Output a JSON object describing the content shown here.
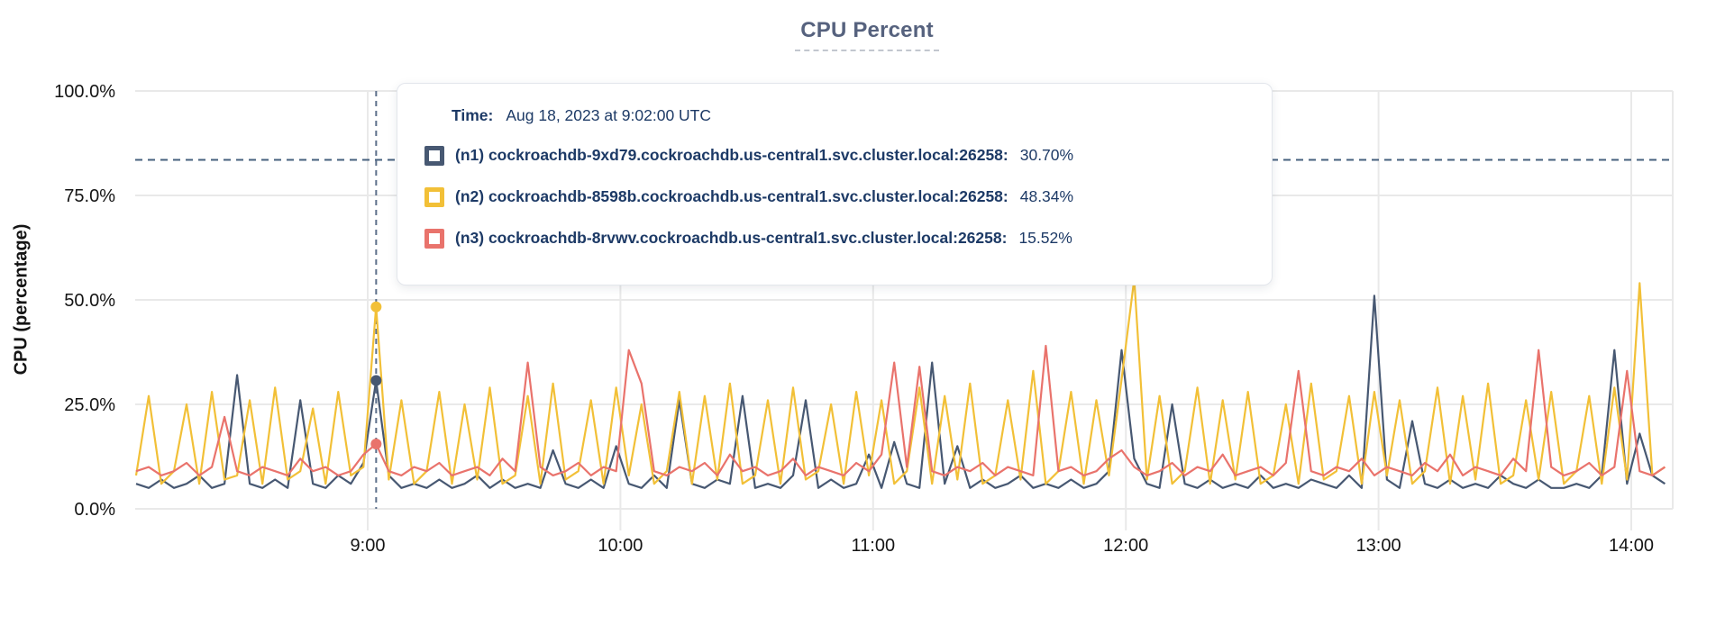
{
  "title": "CPU Percent",
  "tooltip": {
    "time_label": "Time:",
    "time_value": "Aug 18, 2023 at 9:02:00 UTC",
    "series": [
      {
        "label": "(n1) cockroachdb-9xd79.cockroachdb.us-central1.svc.cluster.local:26258:",
        "value": "30.70%",
        "color": "#475872"
      },
      {
        "label": "(n2) cockroachdb-8598b.cockroachdb.us-central1.svc.cluster.local:26258:",
        "value": "48.34%",
        "color": "#f2c037"
      },
      {
        "label": "(n3) cockroachdb-8rvwv.cockroachdb.us-central1.svc.cluster.local:26258:",
        "value": "15.52%",
        "color": "#e9736c"
      }
    ]
  },
  "chart_data": {
    "type": "line",
    "title": "CPU Percent",
    "ylabel": "CPU (percentage)",
    "ylim": [
      0,
      100
    ],
    "grid": true,
    "y_ticks": [
      {
        "label": "0.0%",
        "value": 0
      },
      {
        "label": "25.0%",
        "value": 25
      },
      {
        "label": "50.0%",
        "value": 50
      },
      {
        "label": "75.0%",
        "value": 75
      },
      {
        "label": "100.0%",
        "value": 100
      }
    ],
    "x_ticks": [
      "9:00",
      "10:00",
      "11:00",
      "12:00",
      "13:00",
      "14:00"
    ],
    "x_start_offset_min": -55,
    "x_step_min": 3,
    "threshold_value": 83.5,
    "hover": {
      "time": "9:02",
      "index": 19,
      "points": [
        {
          "series": "n1",
          "value": 30.7
        },
        {
          "series": "n2",
          "value": 48.34
        },
        {
          "series": "n3",
          "value": 15.52
        }
      ]
    },
    "series": [
      {
        "name": "n1",
        "color": "#475872",
        "values": [
          6,
          5,
          7,
          5,
          6,
          8,
          5,
          6,
          32,
          6,
          5,
          7,
          5,
          26,
          6,
          5,
          8,
          6,
          11,
          30.7,
          8,
          5,
          6,
          5,
          7,
          5,
          6,
          8,
          5,
          7,
          5,
          6,
          5,
          14,
          6,
          5,
          7,
          5,
          15,
          6,
          5,
          8,
          5,
          26,
          6,
          5,
          7,
          6,
          27,
          5,
          6,
          5,
          8,
          26,
          5,
          7,
          5,
          6,
          13,
          5,
          16,
          6,
          5,
          35,
          6,
          15,
          5,
          7,
          5,
          6,
          8,
          5,
          6,
          5,
          7,
          5,
          6,
          9,
          38,
          12,
          6,
          5,
          25,
          6,
          5,
          7,
          5,
          6,
          5,
          8,
          5,
          6,
          5,
          7,
          6,
          5,
          8,
          5,
          51,
          7,
          5,
          21,
          6,
          5,
          7,
          5,
          6,
          5,
          8,
          6,
          5,
          7,
          5,
          5,
          6,
          5,
          8,
          38,
          6,
          18,
          8,
          6
        ]
      },
      {
        "name": "n2",
        "color": "#f2c037",
        "values": [
          8,
          27,
          6,
          9,
          25,
          6,
          28,
          7,
          8,
          26,
          6,
          29,
          7,
          9,
          24,
          6,
          28,
          8,
          10,
          48.34,
          7,
          26,
          6,
          9,
          28,
          6,
          25,
          7,
          29,
          6,
          8,
          27,
          6,
          30,
          7,
          9,
          26,
          6,
          29,
          8,
          25,
          6,
          9,
          28,
          6,
          27,
          7,
          30,
          6,
          8,
          26,
          6,
          29,
          7,
          9,
          25,
          6,
          28,
          8,
          26,
          6,
          9,
          29,
          6,
          27,
          7,
          30,
          6,
          8,
          26,
          7,
          33,
          6,
          9,
          28,
          6,
          26,
          8,
          31,
          55,
          7,
          27,
          6,
          9,
          29,
          6,
          26,
          7,
          28,
          6,
          8,
          25,
          6,
          30,
          7,
          9,
          27,
          6,
          28,
          8,
          26,
          6,
          9,
          29,
          6,
          27,
          7,
          30,
          6,
          8,
          26,
          7,
          28,
          6,
          9,
          27,
          6,
          29,
          7,
          54,
          8,
          10
        ]
      },
      {
        "name": "n3",
        "color": "#e9736c",
        "values": [
          9,
          10,
          8,
          9,
          11,
          8,
          10,
          22,
          9,
          8,
          10,
          9,
          8,
          12,
          9,
          10,
          8,
          9,
          13,
          15.52,
          9,
          8,
          10,
          9,
          11,
          8,
          9,
          10,
          8,
          12,
          9,
          35,
          10,
          8,
          9,
          11,
          8,
          10,
          9,
          38,
          30,
          9,
          8,
          10,
          9,
          11,
          8,
          13,
          9,
          10,
          8,
          9,
          12,
          8,
          10,
          9,
          8,
          11,
          9,
          13,
          35,
          10,
          34,
          9,
          8,
          10,
          9,
          11,
          8,
          10,
          9,
          8,
          39,
          9,
          10,
          8,
          9,
          12,
          14,
          10,
          8,
          9,
          11,
          8,
          10,
          9,
          13,
          8,
          9,
          10,
          8,
          11,
          33,
          9,
          8,
          10,
          9,
          12,
          8,
          10,
          9,
          8,
          11,
          9,
          13,
          8,
          10,
          9,
          8,
          12,
          9,
          38,
          10,
          8,
          9,
          11,
          8,
          10,
          33,
          9,
          8,
          10
        ]
      }
    ]
  }
}
